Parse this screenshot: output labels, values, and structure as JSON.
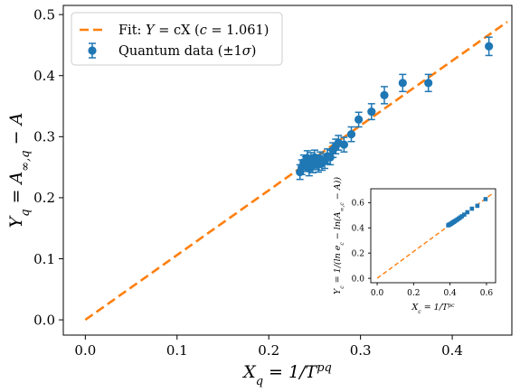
{
  "chart_data": [
    {
      "type": "scatter",
      "xlabel": "X_q = 1/T^{p_q}",
      "ylabel": "Y_q = A_{∞,q} − A",
      "xlim": [
        -0.024,
        0.465
      ],
      "ylim": [
        -0.025,
        0.515
      ],
      "xticks": [
        "0.0",
        "0.1",
        "0.2",
        "0.3",
        "0.4"
      ],
      "yticks": [
        "0.0",
        "0.1",
        "0.2",
        "0.3",
        "0.4",
        "0.5"
      ],
      "grid": false,
      "legend_position": "upper-left",
      "colors": {
        "data": "#1f77b4",
        "fit": "#ff7f0e"
      },
      "series": [
        {
          "name": "Fit: Y = cX (c = 1.061)",
          "kind": "line",
          "style": "dashed",
          "slope": 1.061,
          "x": [
            0.0,
            0.46
          ]
        },
        {
          "name": "Quantum data (±1σ)",
          "kind": "errorbar",
          "points": [
            {
              "x": 0.234,
              "y": 0.242,
              "err": 0.012
            },
            {
              "x": 0.236,
              "y": 0.25,
              "err": 0.012
            },
            {
              "x": 0.238,
              "y": 0.258,
              "err": 0.012
            },
            {
              "x": 0.24,
              "y": 0.255,
              "err": 0.012
            },
            {
              "x": 0.242,
              "y": 0.265,
              "err": 0.012
            },
            {
              "x": 0.244,
              "y": 0.248,
              "err": 0.012
            },
            {
              "x": 0.246,
              "y": 0.262,
              "err": 0.012
            },
            {
              "x": 0.248,
              "y": 0.253,
              "err": 0.012
            },
            {
              "x": 0.25,
              "y": 0.266,
              "err": 0.012
            },
            {
              "x": 0.252,
              "y": 0.258,
              "err": 0.012
            },
            {
              "x": 0.254,
              "y": 0.254,
              "err": 0.012
            },
            {
              "x": 0.256,
              "y": 0.263,
              "err": 0.012
            },
            {
              "x": 0.258,
              "y": 0.257,
              "err": 0.012
            },
            {
              "x": 0.261,
              "y": 0.26,
              "err": 0.012
            },
            {
              "x": 0.264,
              "y": 0.268,
              "err": 0.012
            },
            {
              "x": 0.267,
              "y": 0.266,
              "err": 0.012
            },
            {
              "x": 0.27,
              "y": 0.278,
              "err": 0.012
            },
            {
              "x": 0.273,
              "y": 0.284,
              "err": 0.012
            },
            {
              "x": 0.276,
              "y": 0.29,
              "err": 0.012
            },
            {
              "x": 0.282,
              "y": 0.287,
              "err": 0.012
            },
            {
              "x": 0.29,
              "y": 0.304,
              "err": 0.012
            },
            {
              "x": 0.298,
              "y": 0.328,
              "err": 0.012
            },
            {
              "x": 0.312,
              "y": 0.341,
              "err": 0.013
            },
            {
              "x": 0.326,
              "y": 0.368,
              "err": 0.014
            },
            {
              "x": 0.346,
              "y": 0.388,
              "err": 0.014
            },
            {
              "x": 0.374,
              "y": 0.388,
              "err": 0.014
            },
            {
              "x": 0.44,
              "y": 0.448,
              "err": 0.015
            }
          ]
        }
      ]
    },
    {
      "type": "scatter",
      "inset": true,
      "xlabel": "X_c = 1/T^{p_c}",
      "ylabel": "Y_c = 1/(ln e_c − ln(A_{∞,c} − A))",
      "xlim": [
        -0.035,
        0.65
      ],
      "ylim": [
        -0.035,
        0.71
      ],
      "xticks": [
        "0.0",
        "0.2",
        "0.4",
        "0.6"
      ],
      "yticks": [
        "0.0",
        "0.2",
        "0.4",
        "0.6"
      ],
      "grid": false,
      "colors": {
        "data": "#1f77b4",
        "fit": "#ff7f0e"
      },
      "series": [
        {
          "kind": "line",
          "style": "dashed",
          "slope": 1.061,
          "x": [
            0.0,
            0.63
          ]
        },
        {
          "kind": "scatter",
          "marker": "square",
          "points": [
            {
              "x": 0.39,
              "y": 0.42
            },
            {
              "x": 0.395,
              "y": 0.425
            },
            {
              "x": 0.4,
              "y": 0.428
            },
            {
              "x": 0.405,
              "y": 0.432
            },
            {
              "x": 0.41,
              "y": 0.438
            },
            {
              "x": 0.415,
              "y": 0.442
            },
            {
              "x": 0.42,
              "y": 0.447
            },
            {
              "x": 0.425,
              "y": 0.452
            },
            {
              "x": 0.432,
              "y": 0.458
            },
            {
              "x": 0.44,
              "y": 0.466
            },
            {
              "x": 0.448,
              "y": 0.474
            },
            {
              "x": 0.456,
              "y": 0.482
            },
            {
              "x": 0.465,
              "y": 0.492
            },
            {
              "x": 0.478,
              "y": 0.505
            },
            {
              "x": 0.495,
              "y": 0.524
            },
            {
              "x": 0.52,
              "y": 0.552
            },
            {
              "x": 0.55,
              "y": 0.575
            },
            {
              "x": 0.595,
              "y": 0.628
            }
          ]
        }
      ]
    }
  ]
}
